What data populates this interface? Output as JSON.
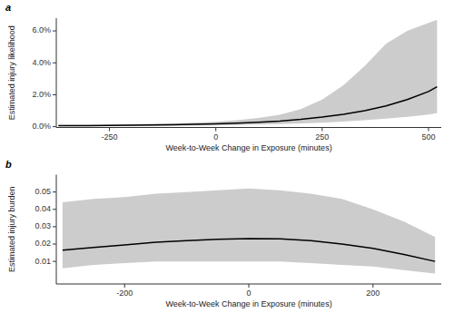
{
  "chart_data": [
    {
      "type": "line",
      "title": "a",
      "x_label": "Week-to-Week Change in Exposure (minutes)",
      "y_label": "Estimated injury likelihood",
      "x": [
        -370,
        -300,
        -200,
        -100,
        0,
        50,
        100,
        150,
        200,
        250,
        300,
        350,
        400,
        450,
        500,
        520
      ],
      "series": [
        {
          "type": "band",
          "color": "#cccccc",
          "lower": [
            0.0003,
            0.0003,
            0.0004,
            0.0006,
            0.0008,
            0.001,
            0.0013,
            0.0016,
            0.002,
            0.0025,
            0.0032,
            0.004,
            0.005,
            0.0062,
            0.0076,
            0.0085
          ],
          "upper": [
            0.001,
            0.0012,
            0.0015,
            0.002,
            0.003,
            0.004,
            0.0055,
            0.0075,
            0.011,
            0.017,
            0.026,
            0.038,
            0.052,
            0.06,
            0.065,
            0.067
          ]
        },
        {
          "type": "line",
          "color": "#000000",
          "values": [
            0.0006,
            0.0007,
            0.0009,
            0.0012,
            0.0018,
            0.0022,
            0.0028,
            0.0035,
            0.0046,
            0.006,
            0.0078,
            0.01,
            0.013,
            0.017,
            0.022,
            0.025
          ]
        }
      ],
      "xlim": [
        -375,
        530
      ],
      "xticks": [
        -250,
        0,
        250,
        500
      ],
      "ylim": [
        -0.0005,
        0.068
      ],
      "yticks": [
        {
          "value": 0.0,
          "label": "0.0%"
        },
        {
          "value": 0.02,
          "label": "2.0%"
        },
        {
          "value": 0.04,
          "label": "4.0%"
        },
        {
          "value": 0.06,
          "label": "6.0%"
        }
      ],
      "grid": false
    },
    {
      "type": "line",
      "title": "b",
      "x_label": "Week-to-Week Change in Exposure (minutes)",
      "y_label": "Estimated injury burden",
      "x": [
        -300,
        -250,
        -200,
        -150,
        -100,
        -50,
        0,
        50,
        100,
        150,
        200,
        250,
        300
      ],
      "series": [
        {
          "type": "band",
          "color": "#cccccc",
          "lower": [
            0.006,
            0.008,
            0.009,
            0.01,
            0.01,
            0.01,
            0.01,
            0.01,
            0.009,
            0.008,
            0.007,
            0.005,
            0.003
          ],
          "upper": [
            0.044,
            0.046,
            0.047,
            0.049,
            0.05,
            0.051,
            0.052,
            0.051,
            0.049,
            0.046,
            0.04,
            0.033,
            0.024
          ]
        },
        {
          "type": "line",
          "color": "#000000",
          "values": [
            0.0165,
            0.018,
            0.0195,
            0.021,
            0.022,
            0.0228,
            0.0232,
            0.023,
            0.022,
            0.02,
            0.0175,
            0.014,
            0.01
          ]
        }
      ],
      "xlim": [
        -310,
        310
      ],
      "xticks": [
        -200,
        0,
        200
      ],
      "ylim": [
        -0.003,
        0.06
      ],
      "yticks": [
        0.01,
        0.02,
        0.03,
        0.04,
        0.05
      ],
      "grid": false
    }
  ]
}
